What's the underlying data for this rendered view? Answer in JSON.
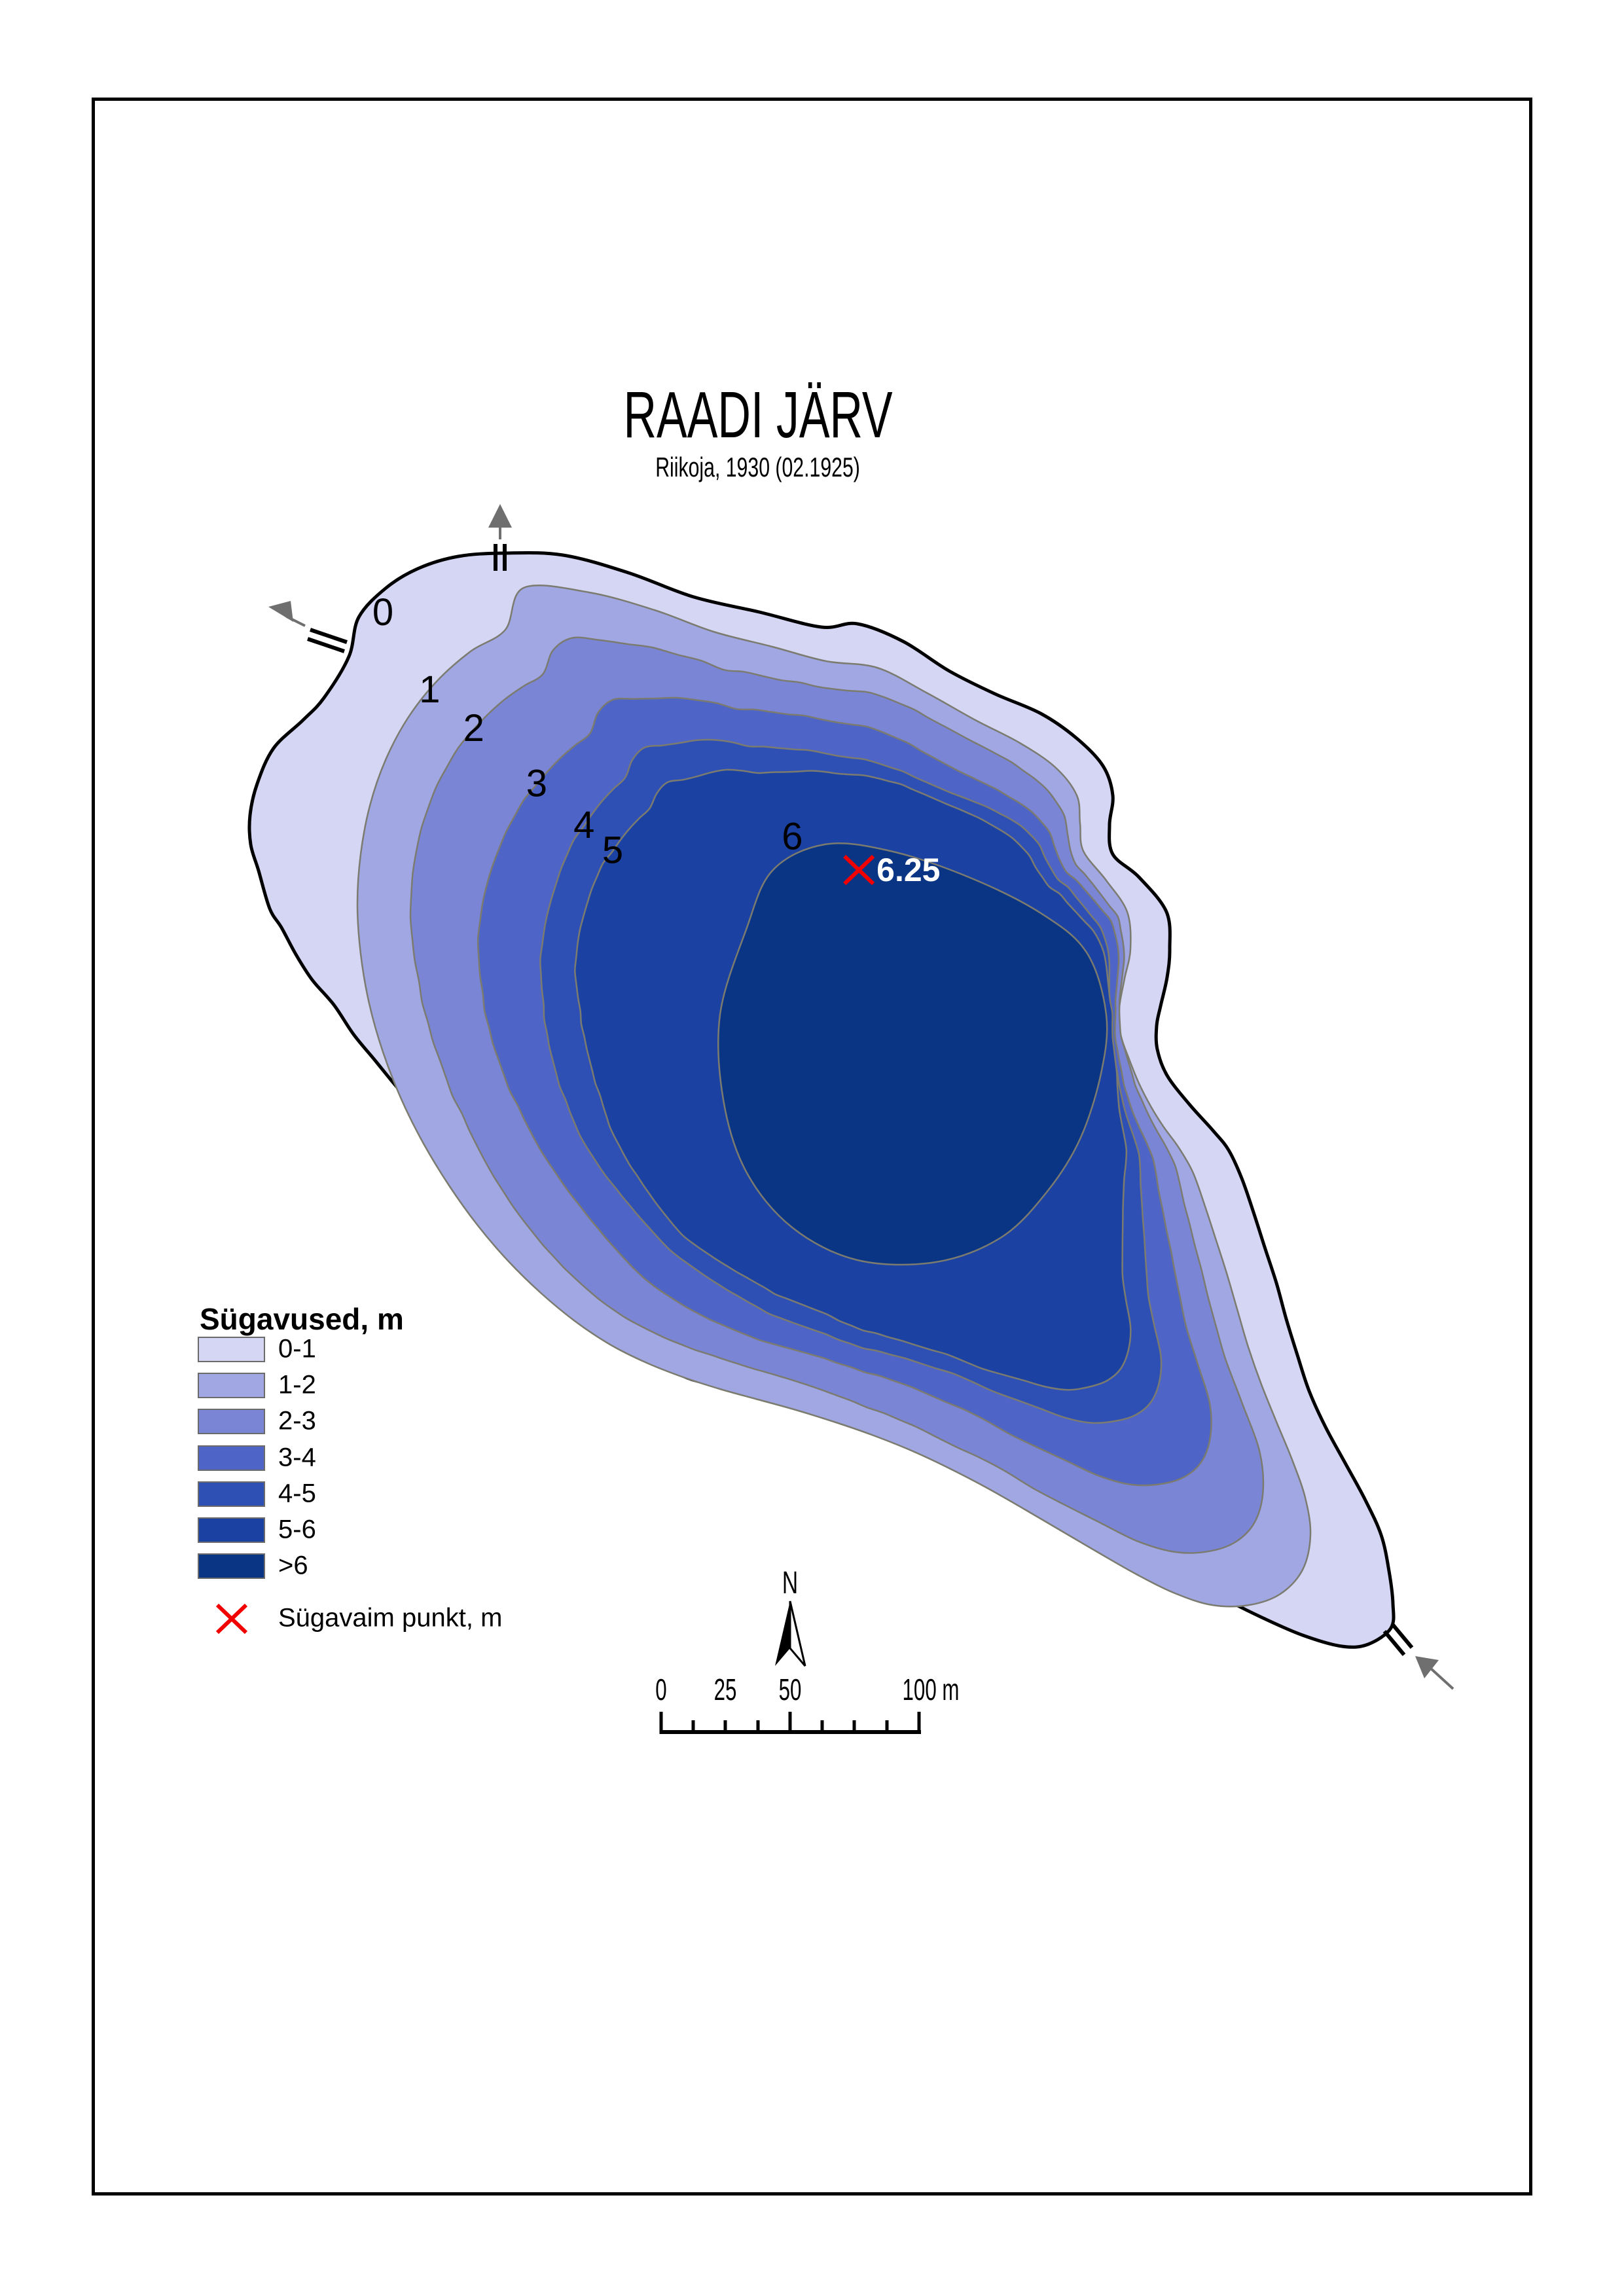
{
  "title": "RAADI JÄRV",
  "subtitle": "Riikoja, 1930 (02.1925)",
  "legend": {
    "title": "Sügavused, m",
    "items": [
      {
        "label": "0-1",
        "color": "#D5D6F3"
      },
      {
        "label": "1-2",
        "color": "#A0A7E3"
      },
      {
        "label": "2-3",
        "color": "#7A85D6"
      },
      {
        "label": "3-4",
        "color": "#4E64C6"
      },
      {
        "label": "4-5",
        "color": "#2E50B5"
      },
      {
        "label": "5-6",
        "color": "#1B42A2"
      },
      {
        "label": ">6",
        "color": "#0A3484"
      }
    ],
    "deepest_point_label": "Sügavaim punkt, m"
  },
  "map": {
    "contour_labels": [
      "0",
      "1",
      "2",
      "3",
      "4",
      "5",
      "6"
    ],
    "deepest_point_value": "6.25",
    "deepest_marker_color": "#F20000",
    "shoreline_color": "#000000",
    "contour_line_color": "#7B7B6F",
    "stream_arrow_color": "#6F6F6F"
  },
  "north": {
    "label": "N"
  },
  "scale_bar": {
    "tick_labels": [
      "0",
      "25",
      "50"
    ],
    "end_label": "100 m"
  }
}
